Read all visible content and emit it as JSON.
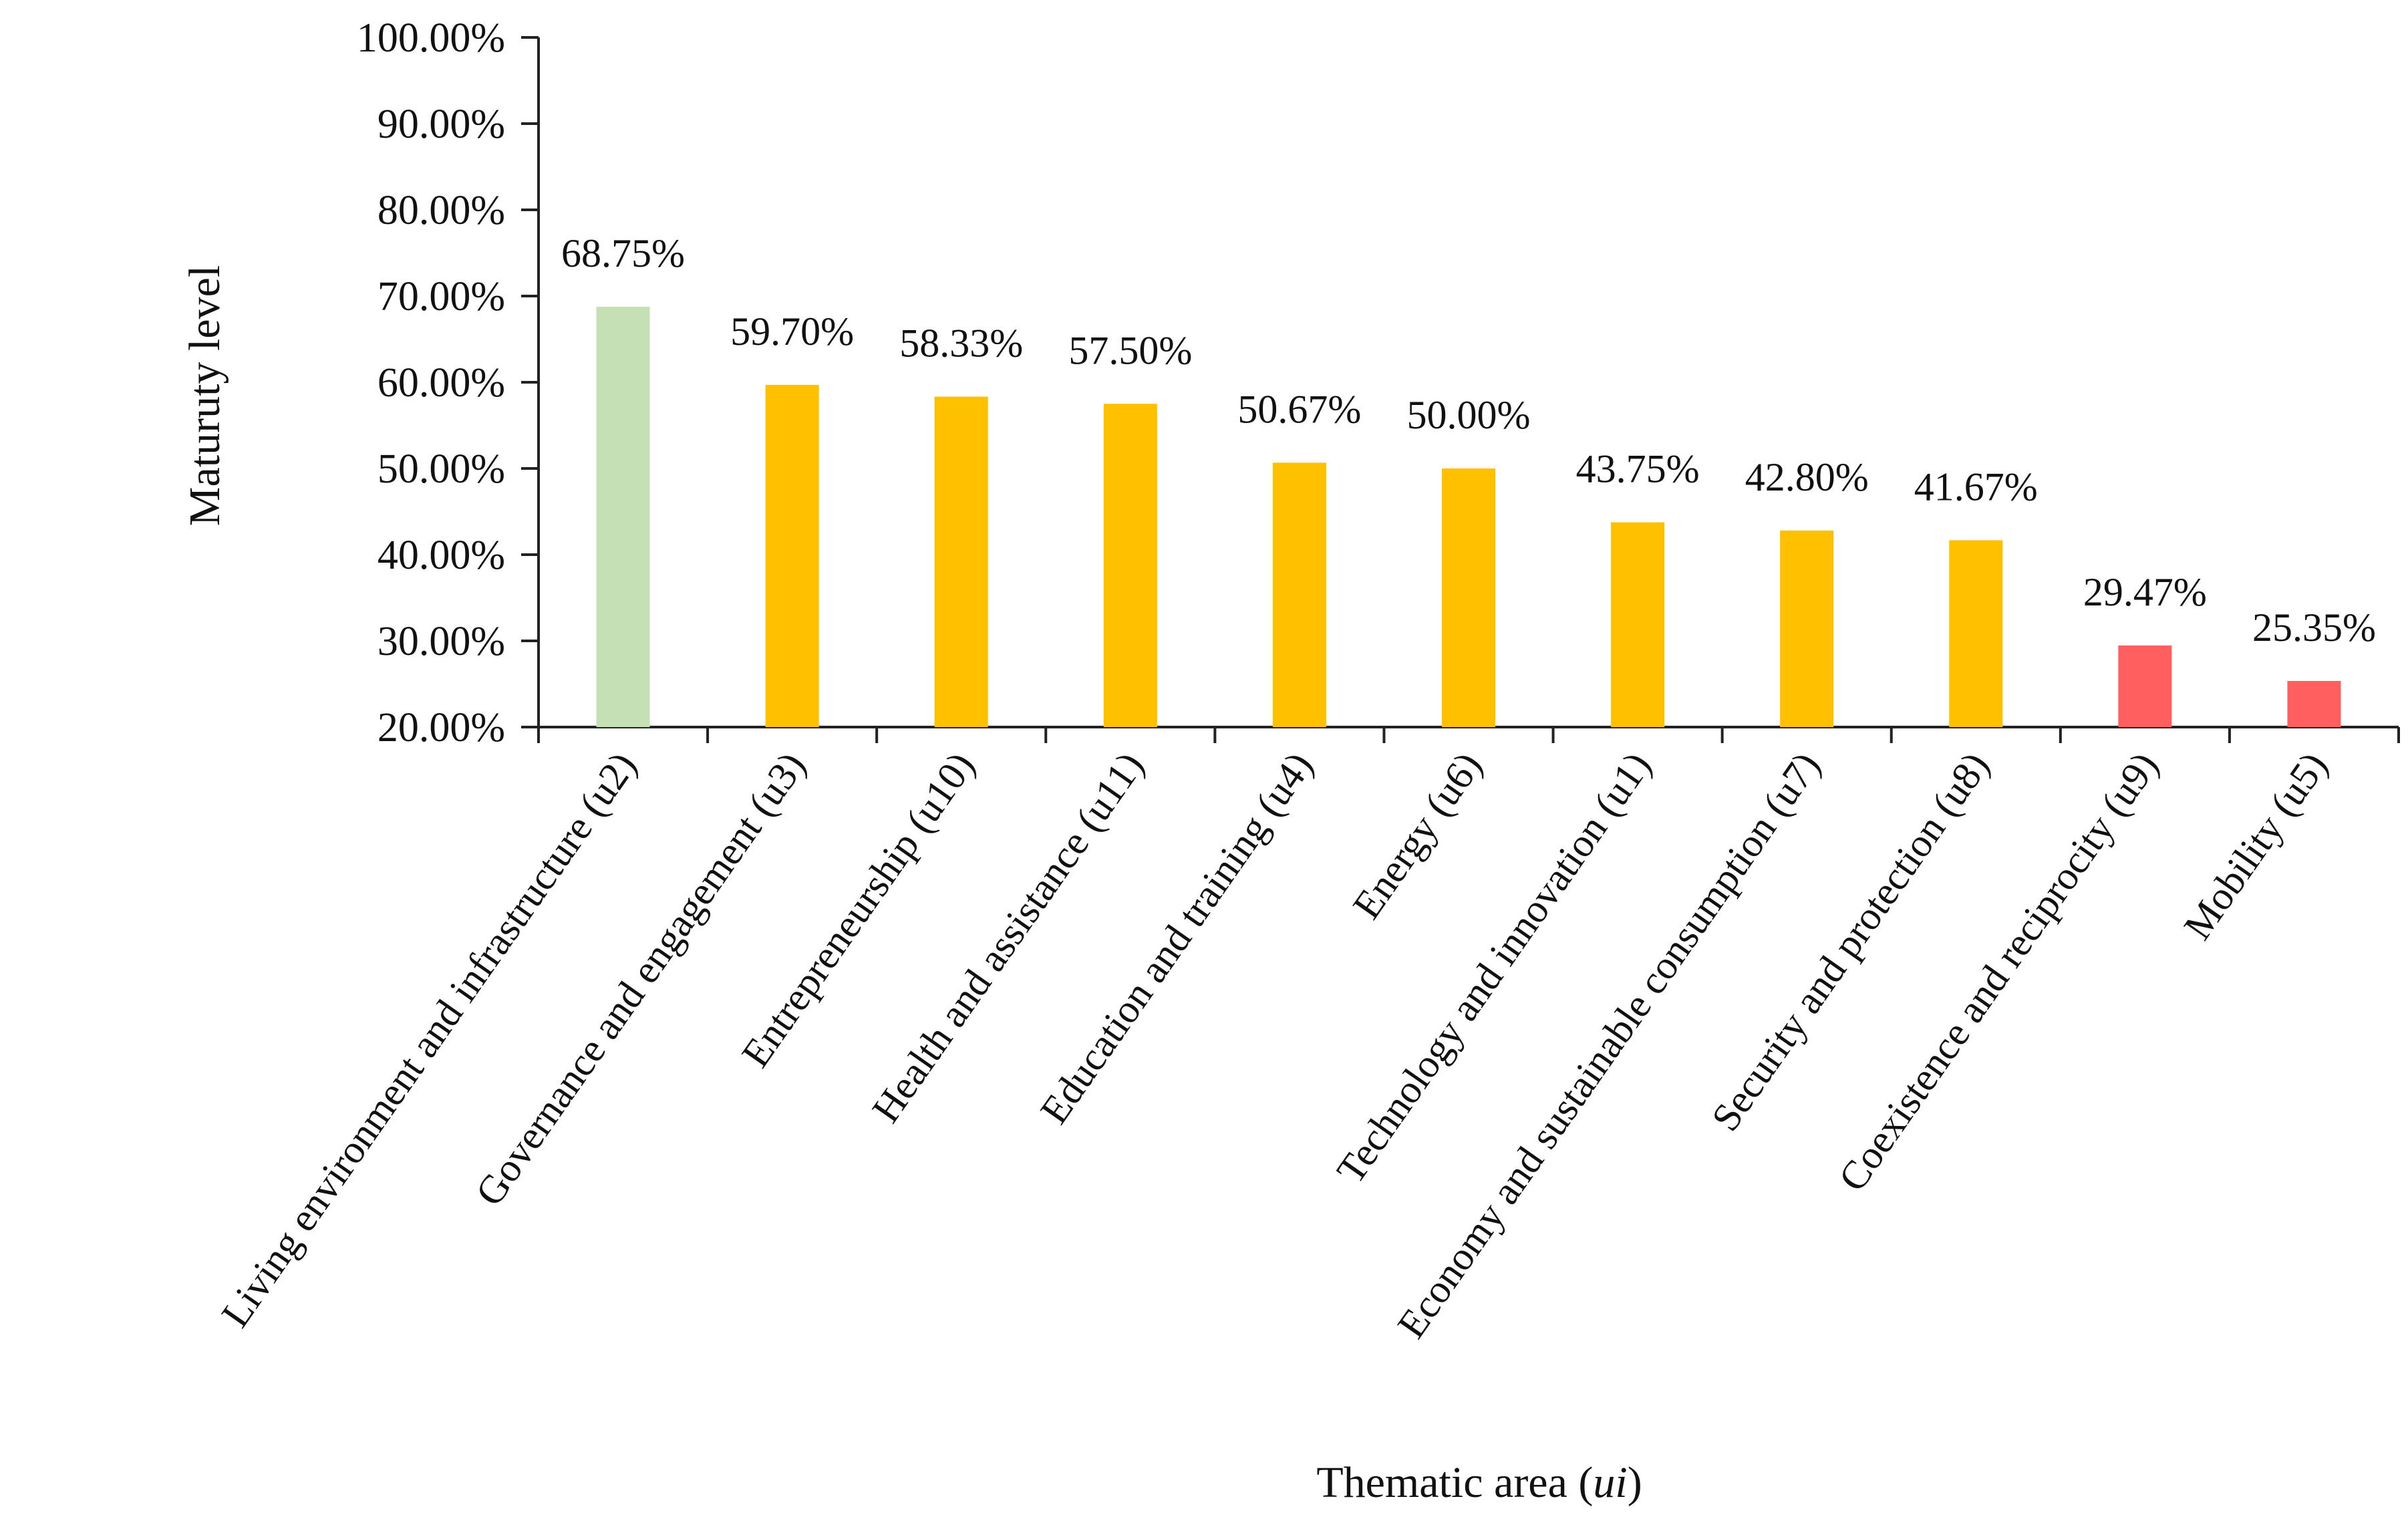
{
  "chart_data": {
    "type": "bar",
    "categories": [
      "Living environment and infrastructure (u2)",
      "Governance and engagement (u3)",
      "Entrepreneurship (u10)",
      "Health and assistance (u11)",
      "Education and training (u4)",
      "Energy (u6)",
      "Technology and innovation (u1)",
      "Economy and sustainable consumption (u7)",
      "Security and protection (u8)",
      "Coexistence and reciprocity (u9)",
      "Mobility (u5)"
    ],
    "values": [
      68.75,
      59.7,
      58.33,
      57.5,
      50.67,
      50.0,
      43.75,
      42.8,
      41.67,
      29.47,
      25.35
    ],
    "data_labels": [
      "68.75%",
      "59.70%",
      "58.33%",
      "57.50%",
      "50.67%",
      "50.00%",
      "43.75%",
      "42.80%",
      "41.67%",
      "29.47%",
      "25.35%"
    ],
    "bar_colors": [
      "#c5e0b4",
      "#ffc000",
      "#ffc000",
      "#ffc000",
      "#ffc000",
      "#ffc000",
      "#ffc000",
      "#ffc000",
      "#ffc000",
      "#ff5f5f",
      "#ff5f5f"
    ],
    "ylim": [
      20,
      100
    ],
    "yticks": [
      20,
      30,
      40,
      50,
      60,
      70,
      80,
      90,
      100
    ],
    "ytick_labels": [
      "20.00%",
      "30.00%",
      "40.00%",
      "50.00%",
      "60.00%",
      "70.00%",
      "80.00%",
      "90.00%",
      "100.00%"
    ],
    "ylabel": "Maturuty level",
    "xlabel_main": "Thematic area (",
    "xlabel_italic": "ui",
    "xlabel_end": ")",
    "grid": false,
    "legend": "none"
  }
}
